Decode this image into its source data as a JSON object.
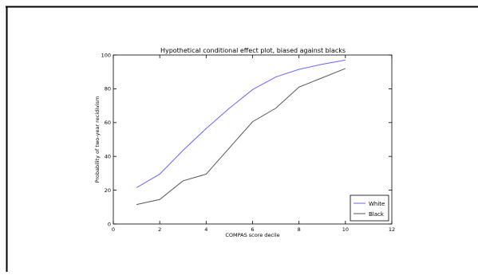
{
  "chart_data": {
    "type": "line",
    "title": "Hypothetical conditional effect plot, biased against blacks",
    "xlabel": "COMPAS score decile",
    "ylabel": "Probability of two-year recidivism",
    "xlim": [
      0,
      12
    ],
    "ylim": [
      0,
      100
    ],
    "xticks": [
      0,
      2,
      4,
      6,
      8,
      10,
      12
    ],
    "yticks": [
      0,
      20,
      40,
      60,
      80,
      100
    ],
    "x": [
      1,
      2,
      3,
      4,
      5,
      6,
      7,
      8,
      9,
      10
    ],
    "series": [
      {
        "name": "White",
        "color": "#6666ff",
        "values": [
          21.5,
          29.5,
          43.5,
          56.5,
          68.5,
          79.5,
          87,
          91.5,
          94.5,
          97
        ]
      },
      {
        "name": "Black",
        "color": "#555555",
        "values": [
          11.5,
          14.5,
          25.5,
          29.5,
          45,
          60.5,
          68.5,
          81,
          86.5,
          92
        ]
      }
    ],
    "grid": false,
    "legend_position": "lower-right"
  }
}
